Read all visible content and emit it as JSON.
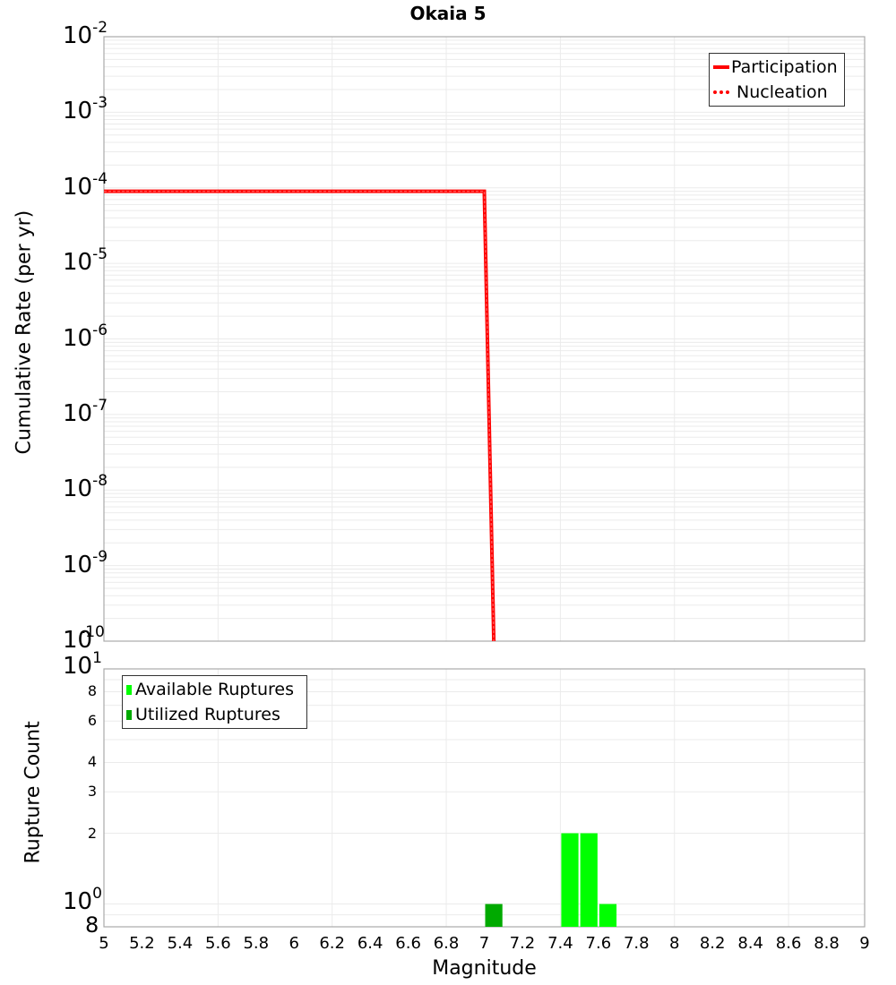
{
  "title": "Okaia 5",
  "chart_data": [
    {
      "type": "line",
      "title": "Okaia 5",
      "xlabel": "Magnitude",
      "ylabel": "Cumulative Rate (per yr)",
      "yscale": "log",
      "xlim": [
        5,
        9
      ],
      "ylim": [
        1e-10,
        0.01
      ],
      "grid": true,
      "legend_position": "upper right",
      "y_tick_labels": [
        "10^-2",
        "10^-3",
        "10^-4",
        "10^-5",
        "10^-6",
        "10^-7",
        "10^-8",
        "10^-9",
        "10^-10"
      ],
      "series": [
        {
          "name": "Participation",
          "style": "solid",
          "color": "#ff0000",
          "x": [
            5.0,
            7.0,
            7.05
          ],
          "y": [
            9e-05,
            9e-05,
            1e-10
          ]
        },
        {
          "name": "Nucleation",
          "style": "dotted",
          "color": "#ff0000",
          "x": [
            5.0,
            7.0,
            7.05
          ],
          "y": [
            9e-05,
            9e-05,
            1e-10
          ]
        }
      ]
    },
    {
      "type": "bar",
      "xlabel": "Magnitude",
      "ylabel": "Rupture Count",
      "yscale": "log",
      "xlim": [
        5,
        9
      ],
      "ylim": [
        0.8,
        10
      ],
      "grid": true,
      "legend_position": "upper left",
      "y_tick_labels": [
        "8",
        "10^0",
        "2",
        "3",
        "4",
        "6",
        "8",
        "10^1"
      ],
      "x_tick_labels": [
        "5",
        "5.2",
        "5.4",
        "5.6",
        "5.8",
        "6",
        "6.2",
        "6.4",
        "6.6",
        "6.8",
        "7",
        "7.2",
        "7.4",
        "7.6",
        "7.8",
        "8",
        "8.2",
        "8.4",
        "8.6",
        "8.8",
        "9"
      ],
      "series": [
        {
          "name": "Available Ruptures",
          "color": "#00ff00",
          "x": [
            7.45,
            7.55,
            7.65
          ],
          "values": [
            2,
            2,
            1
          ]
        },
        {
          "name": "Utilized Ruptures",
          "color": "#00aa00",
          "x": [
            7.05
          ],
          "values": [
            1
          ]
        }
      ]
    }
  ],
  "top": {
    "ylabel": "Cumulative Rate (per yr)",
    "yticks": [
      {
        "base": "10",
        "exp": "-2"
      },
      {
        "base": "10",
        "exp": "-3"
      },
      {
        "base": "10",
        "exp": "-4"
      },
      {
        "base": "10",
        "exp": "-5"
      },
      {
        "base": "10",
        "exp": "-6"
      },
      {
        "base": "10",
        "exp": "-7"
      },
      {
        "base": "10",
        "exp": "-8"
      },
      {
        "base": "10",
        "exp": "-9"
      },
      {
        "base": "10",
        "exp": "-10"
      }
    ],
    "legend": [
      {
        "label": "Participation",
        "color": "#ff0000"
      },
      {
        "label": "Nucleation",
        "color": "#ff0000"
      }
    ]
  },
  "bottom": {
    "ylabel": "Rupture Count",
    "top_tick": {
      "base": "10",
      "exp": "1"
    },
    "one_tick": {
      "base": "10",
      "exp": "0"
    },
    "minor_ticks": [
      "8",
      "6",
      "4",
      "3",
      "2"
    ],
    "low_tick": "8",
    "legend": [
      {
        "label": "Available Ruptures",
        "color": "#00ff00"
      },
      {
        "label": "Utilized Ruptures",
        "color": "#00aa00"
      }
    ]
  },
  "x_axis": {
    "label": "Magnitude",
    "ticks": [
      "5",
      "5.2",
      "5.4",
      "5.6",
      "5.8",
      "6",
      "6.2",
      "6.4",
      "6.6",
      "6.8",
      "7",
      "7.2",
      "7.4",
      "7.6",
      "7.8",
      "8",
      "8.2",
      "8.4",
      "8.6",
      "8.8",
      "9"
    ]
  }
}
